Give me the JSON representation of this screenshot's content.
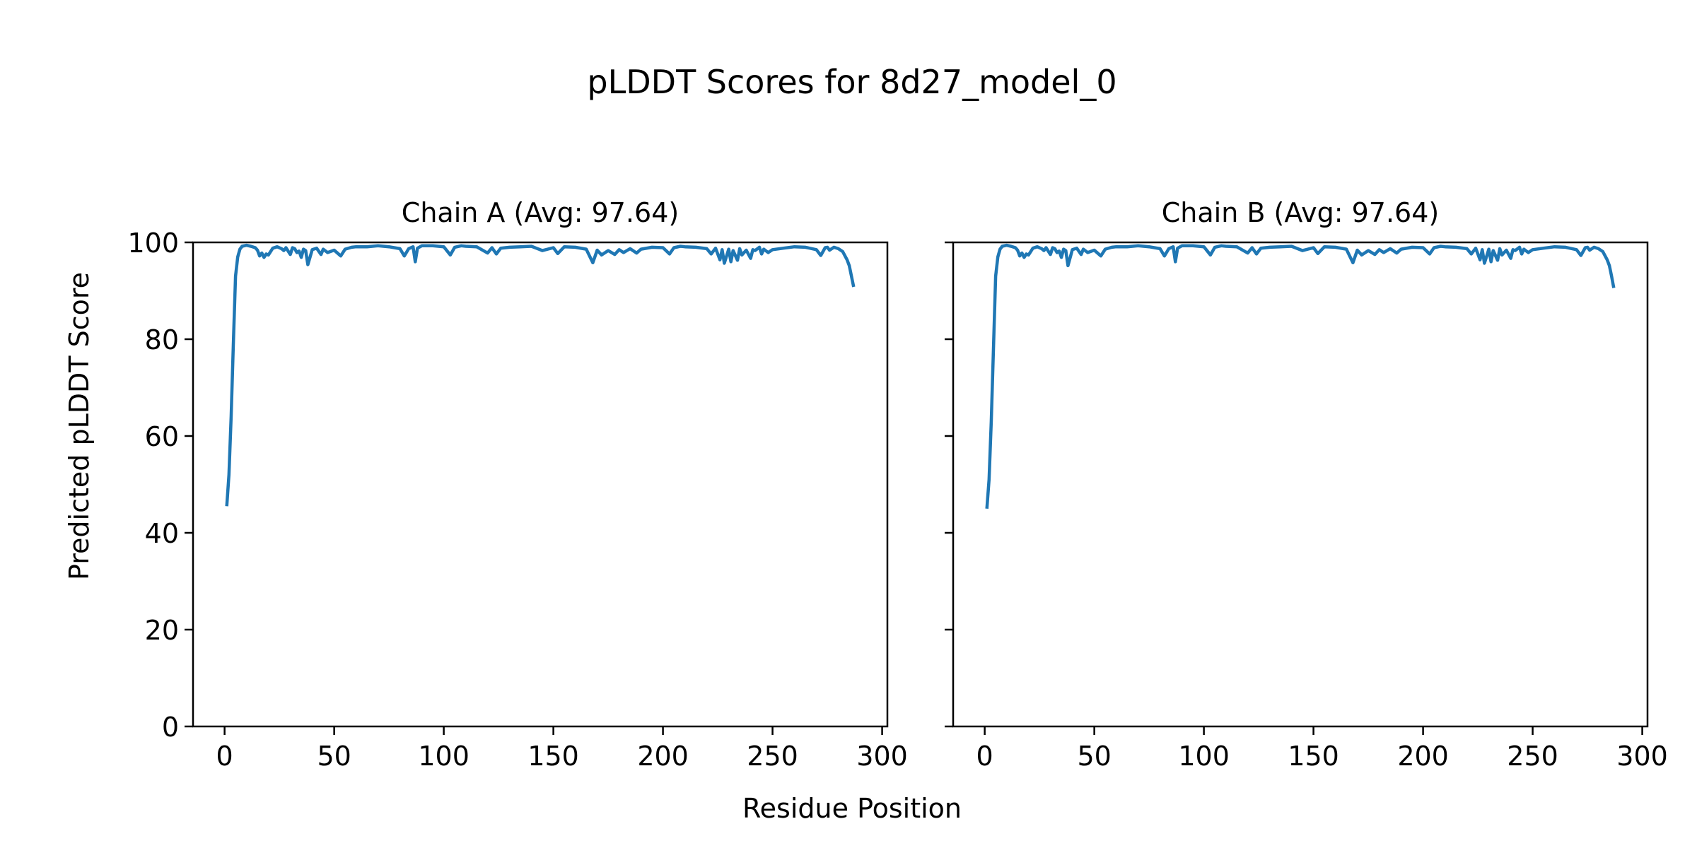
{
  "figure": {
    "title": "pLDDT Scores for 8d27_model_0",
    "xlabel": "Residue Position",
    "ylabel": "Predicted pLDDT Score"
  },
  "chart_data": [
    {
      "type": "line",
      "title": "Chain A (Avg: 97.64)",
      "xlabel": "Residue Position",
      "ylabel": "Predicted pLDDT Score",
      "xlim": [
        -14.4,
        302.4
      ],
      "ylim": [
        0,
        100
      ],
      "xticks": [
        0,
        50,
        100,
        150,
        200,
        250,
        300
      ],
      "yticks": [
        0,
        20,
        40,
        60,
        80,
        100
      ],
      "color": "#1f77b4",
      "grid": false,
      "series": [
        {
          "x": [
            1,
            2,
            3,
            4,
            5,
            6,
            7,
            8,
            10,
            12,
            14,
            15,
            16,
            17,
            18,
            19,
            20,
            22,
            24,
            26,
            27,
            28,
            30,
            31,
            32,
            33,
            34,
            35,
            36,
            37,
            38,
            40,
            42,
            44,
            45,
            47,
            50,
            53,
            55,
            58,
            60,
            65,
            70,
            75,
            80,
            82,
            84,
            86,
            87,
            88,
            90,
            95,
            100,
            103,
            105,
            108,
            110,
            115,
            120,
            122,
            124,
            126,
            130,
            135,
            140,
            145,
            150,
            152,
            155,
            160,
            165,
            168,
            170,
            172,
            175,
            178,
            180,
            182,
            185,
            188,
            190,
            195,
            200,
            203,
            205,
            208,
            210,
            215,
            220,
            222,
            224,
            226,
            227,
            228,
            230,
            231,
            232,
            234,
            235,
            236,
            238,
            240,
            241,
            242,
            244,
            245,
            246,
            248,
            250,
            255,
            260,
            265,
            270,
            272,
            274,
            275,
            276,
            278,
            280,
            282,
            284,
            285,
            286,
            287
          ],
          "y": [
            45.5,
            52,
            64,
            79,
            93,
            97,
            98.6,
            99.2,
            99.4,
            99.2,
            98.9,
            98.4,
            97.2,
            97.8,
            96.9,
            97.6,
            97.4,
            98.8,
            99.1,
            98.7,
            98.3,
            98.9,
            97.5,
            98.9,
            98.7,
            97.9,
            98.2,
            96.9,
            98.6,
            98.3,
            95.4,
            98.5,
            98.8,
            97.5,
            98.6,
            97.9,
            98.4,
            97.2,
            98.6,
            99.0,
            99.1,
            99.1,
            99.3,
            99.1,
            98.7,
            97.2,
            98.7,
            99.1,
            96.0,
            98.8,
            99.3,
            99.3,
            99.1,
            97.4,
            99.0,
            99.3,
            99.2,
            99.1,
            97.8,
            98.9,
            97.6,
            98.8,
            99.0,
            99.1,
            99.2,
            98.3,
            98.9,
            97.7,
            99.1,
            99.0,
            98.6,
            95.8,
            98.4,
            97.4,
            98.3,
            97.5,
            98.5,
            97.9,
            98.7,
            97.8,
            98.6,
            99.0,
            98.9,
            97.6,
            98.9,
            99.2,
            99.1,
            99.0,
            98.7,
            97.6,
            98.8,
            96.4,
            98.5,
            95.7,
            98.6,
            96.0,
            98.3,
            96.3,
            98.7,
            97.4,
            98.4,
            96.7,
            98.5,
            98.3,
            99.0,
            97.6,
            98.6,
            97.9,
            98.5,
            98.8,
            99.1,
            99.0,
            98.5,
            97.3,
            98.9,
            99.0,
            98.4,
            99.0,
            98.7,
            98.1,
            96.4,
            95.2,
            93.0,
            90.8
          ]
        }
      ]
    },
    {
      "type": "line",
      "title": "Chain B (Avg: 97.64)",
      "xlabel": "Residue Position",
      "ylabel": "Predicted pLDDT Score",
      "xlim": [
        -14.4,
        302.4
      ],
      "ylim": [
        0,
        100
      ],
      "xticks": [
        0,
        50,
        100,
        150,
        200,
        250,
        300
      ],
      "yticks": [
        0,
        20,
        40,
        60,
        80,
        100
      ],
      "color": "#1f77b4",
      "grid": false,
      "series": [
        {
          "x": [
            1,
            2,
            3,
            4,
            5,
            6,
            7,
            8,
            10,
            12,
            14,
            15,
            16,
            17,
            18,
            19,
            20,
            22,
            24,
            26,
            27,
            28,
            30,
            31,
            32,
            33,
            34,
            35,
            36,
            37,
            38,
            40,
            42,
            44,
            45,
            47,
            50,
            53,
            55,
            58,
            60,
            65,
            70,
            75,
            80,
            82,
            84,
            86,
            87,
            88,
            90,
            95,
            100,
            103,
            105,
            108,
            110,
            115,
            120,
            122,
            124,
            126,
            130,
            135,
            140,
            145,
            150,
            152,
            155,
            160,
            165,
            168,
            170,
            172,
            175,
            178,
            180,
            182,
            185,
            188,
            190,
            195,
            200,
            203,
            205,
            208,
            210,
            215,
            220,
            222,
            224,
            226,
            227,
            228,
            230,
            231,
            232,
            234,
            235,
            236,
            238,
            240,
            241,
            242,
            244,
            245,
            246,
            248,
            250,
            255,
            260,
            265,
            270,
            272,
            274,
            275,
            276,
            278,
            280,
            282,
            284,
            285,
            286,
            287
          ],
          "y": [
            45.0,
            51,
            63,
            78,
            93,
            97,
            98.6,
            99.2,
            99.4,
            99.2,
            98.9,
            98.4,
            97.2,
            97.8,
            96.9,
            97.6,
            97.4,
            98.8,
            99.1,
            98.7,
            98.3,
            98.9,
            97.5,
            98.9,
            98.7,
            97.9,
            98.2,
            96.9,
            98.6,
            98.3,
            95.2,
            98.5,
            98.8,
            97.5,
            98.6,
            97.9,
            98.4,
            97.2,
            98.6,
            99.0,
            99.1,
            99.1,
            99.3,
            99.1,
            98.7,
            97.2,
            98.7,
            99.1,
            96.0,
            98.8,
            99.3,
            99.3,
            99.1,
            97.4,
            99.0,
            99.3,
            99.2,
            99.1,
            97.8,
            98.9,
            97.6,
            98.8,
            99.0,
            99.1,
            99.2,
            98.3,
            98.9,
            97.7,
            99.1,
            99.0,
            98.6,
            95.8,
            98.4,
            97.4,
            98.3,
            97.5,
            98.5,
            97.9,
            98.7,
            97.8,
            98.6,
            99.0,
            98.9,
            97.6,
            98.9,
            99.2,
            99.1,
            99.0,
            98.7,
            97.6,
            98.8,
            96.4,
            98.5,
            95.7,
            98.6,
            96.0,
            98.3,
            96.3,
            98.7,
            97.4,
            98.4,
            96.7,
            98.5,
            98.3,
            99.0,
            97.6,
            98.6,
            97.9,
            98.5,
            98.8,
            99.1,
            99.0,
            98.5,
            97.3,
            98.9,
            99.0,
            98.4,
            99.0,
            98.7,
            98.1,
            96.4,
            95.2,
            93.0,
            90.6
          ]
        }
      ]
    }
  ]
}
